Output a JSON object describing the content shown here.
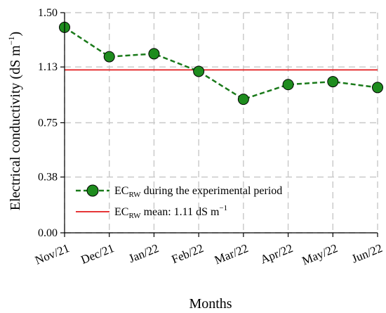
{
  "chart_data": {
    "type": "line",
    "categories": [
      "Nov/21",
      "Dec/21",
      "Jan/22",
      "Feb/22",
      "Mar/22",
      "Apr/22",
      "May/22",
      "Jun/22"
    ],
    "ylim": [
      0.0,
      1.5
    ],
    "yticks": [
      "0.00",
      "0.38",
      "0.75",
      "1.13",
      "1.50"
    ],
    "xlabel": "Months",
    "ylabel": {
      "main": "Electrical conductivity (dS m",
      "sup": "−1",
      "close": ")"
    },
    "grid": true,
    "series": [
      {
        "name": {
          "base": "EC",
          "sub": "RW",
          "rest": " during the experimental period"
        },
        "values": [
          1.4,
          1.2,
          1.22,
          1.1,
          0.91,
          1.01,
          1.03,
          0.99
        ],
        "style": "dashed-markers",
        "line_color": "#1a7a1a",
        "marker_fill": "#1e8c1e"
      }
    ],
    "reference_line": {
      "name": {
        "base": "EC",
        "sub": "RW",
        "rest": " mean: 1.11 dS m",
        "sup": "−1"
      },
      "value": 1.11,
      "color": "#e31a1c"
    },
    "legend_position": "bottom-left"
  }
}
